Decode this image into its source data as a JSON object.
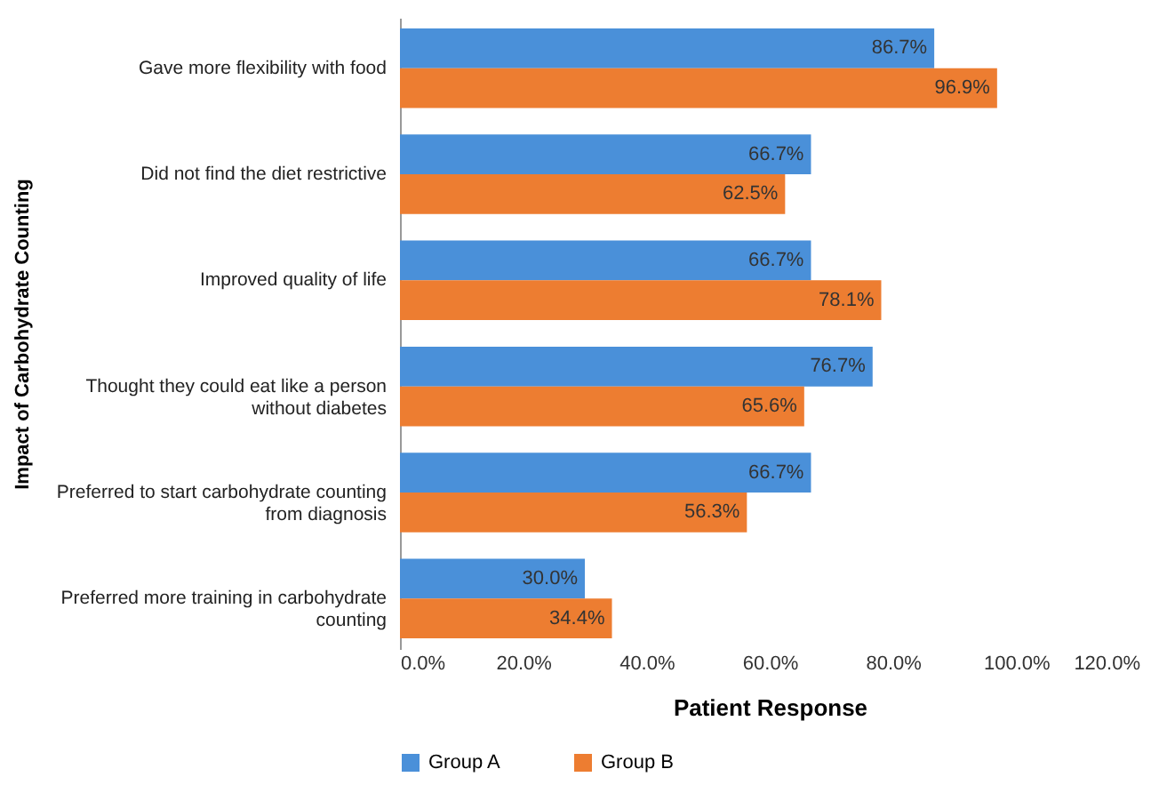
{
  "chart_data": {
    "type": "bar",
    "orientation": "horizontal",
    "xlabel": "Patient Response",
    "ylabel": "Impact of Carbohydrate Counting",
    "categories": [
      "Gave more flexibility with food",
      "Did not find the diet restrictive",
      "Improved quality of life",
      "Thought they could eat like a person without diabetes",
      "Preferred to start carbohydrate counting from diagnosis",
      "Preferred more training in carbohydrate counting"
    ],
    "series": [
      {
        "name": "Group A",
        "color": "#4a90d9",
        "values": [
          86.7,
          66.7,
          66.7,
          76.7,
          66.7,
          30.0
        ],
        "value_labels": [
          "86.7%",
          "66.7%",
          "66.7%",
          "76.7%",
          "66.7%",
          "30.0%"
        ]
      },
      {
        "name": "Group B",
        "color": "#ed7d31",
        "values": [
          96.9,
          62.5,
          78.1,
          65.6,
          56.3,
          34.4
        ],
        "value_labels": [
          "96.9%",
          "62.5%",
          "78.1%",
          "65.6%",
          "56.3%",
          "34.4%"
        ]
      }
    ],
    "xlim": [
      0,
      120
    ],
    "xticks": [
      {
        "value": 0,
        "label": "0.0%"
      },
      {
        "value": 20,
        "label": "20.0%"
      },
      {
        "value": 40,
        "label": "40.0%"
      },
      {
        "value": 60,
        "label": "60.0%"
      },
      {
        "value": 80,
        "label": "80.0%"
      },
      {
        "value": 100,
        "label": "100.0%"
      },
      {
        "value": 120,
        "label": "120.0%"
      }
    ],
    "grid": false,
    "legend": "bottom"
  }
}
